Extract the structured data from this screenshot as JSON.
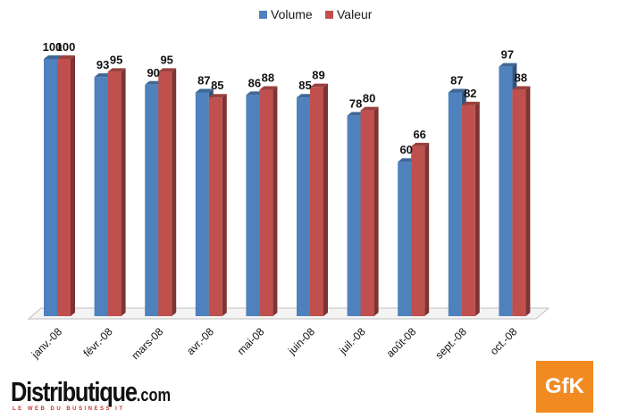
{
  "chart_data": {
    "type": "bar",
    "categories": [
      "janv.-08",
      "févr.-08",
      "mars-08",
      "avr.-08",
      "mai-08",
      "juin-08",
      "juil.-08",
      "août-08",
      "sept.-08",
      "oct.-08"
    ],
    "series": [
      {
        "name": "Volume",
        "values": [
          100,
          93,
          90,
          87,
          86,
          85,
          78,
          60,
          87,
          97
        ],
        "color": "#4f81bd"
      },
      {
        "name": "Valeur",
        "values": [
          100,
          95,
          95,
          85,
          88,
          89,
          80,
          66,
          82,
          88
        ],
        "color": "#c0504d"
      }
    ],
    "ylim": [
      0,
      100
    ],
    "grid": false,
    "legend": "top-center",
    "style": "3d-clustered-bar"
  },
  "logos": {
    "publisher": "Distributique",
    "publisher_suffix": ".com",
    "publisher_tagline": "LE WEB DU BUSINESS IT",
    "brand": "GfK"
  },
  "colors": {
    "brand_orange": "#f08a21"
  }
}
